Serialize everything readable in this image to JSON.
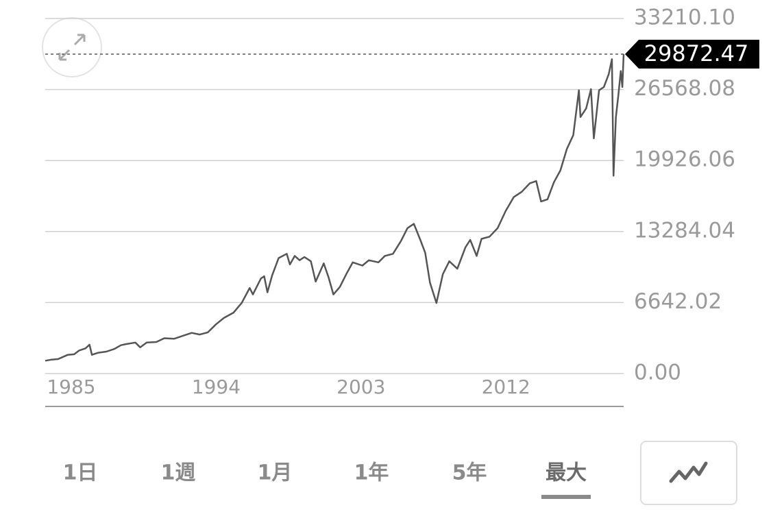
{
  "chart_data": {
    "type": "line",
    "x": [
      1984.9,
      1985.3,
      1985.7,
      1986.0,
      1986.3,
      1986.7,
      1987.0,
      1987.4,
      1987.65,
      1987.8,
      1988.2,
      1988.7,
      1989.2,
      1989.6,
      1989.9,
      1990.5,
      1990.8,
      1991.2,
      1991.8,
      1992.3,
      1992.9,
      1993.5,
      1994.0,
      1994.5,
      1995.0,
      1995.5,
      1996.0,
      1996.6,
      1997.1,
      1997.6,
      1997.8,
      1998.3,
      1998.5,
      1998.7,
      1999.0,
      1999.4,
      1999.9,
      2000.1,
      2000.4,
      2000.7,
      2001.0,
      2001.4,
      2001.7,
      2002.2,
      2002.5,
      2002.8,
      2003.2,
      2003.6,
      2004.0,
      2004.6,
      2005.0,
      2005.6,
      2006.0,
      2006.5,
      2007.0,
      2007.4,
      2007.8,
      2008.2,
      2008.5,
      2008.8,
      2009.2,
      2009.6,
      2010.0,
      2010.5,
      2011.0,
      2011.3,
      2011.7,
      2012.0,
      2012.5,
      2013.0,
      2013.5,
      2014.0,
      2014.5,
      2015.0,
      2015.4,
      2015.7,
      2016.1,
      2016.5,
      2016.9,
      2017.3,
      2017.7,
      2018.05,
      2018.15,
      2018.5,
      2018.8,
      2018.98,
      2019.3,
      2019.6,
      2019.9,
      2020.1,
      2020.2,
      2020.35,
      2020.5,
      2020.65,
      2020.75,
      2020.83
    ],
    "values": [
      1200,
      1300,
      1350,
      1550,
      1750,
      1800,
      2150,
      2350,
      2700,
      1750,
      1950,
      2050,
      2300,
      2650,
      2750,
      2900,
      2450,
      2900,
      2950,
      3300,
      3250,
      3550,
      3800,
      3650,
      3850,
      4600,
      5200,
      5700,
      6600,
      8000,
      7400,
      8900,
      9100,
      7600,
      9200,
      10800,
      11200,
      10200,
      11000,
      10600,
      10900,
      10500,
      8600,
      10300,
      9000,
      7400,
      8100,
      9300,
      10400,
      10100,
      10600,
      10400,
      11000,
      11200,
      12400,
      13600,
      14000,
      12500,
      11300,
      8500,
      6600,
      9300,
      10500,
      9800,
      11800,
      12500,
      11000,
      12600,
      12800,
      13600,
      15200,
      16500,
      17000,
      17800,
      18000,
      16100,
      16300,
      17900,
      19000,
      21000,
      22300,
      26500,
      24000,
      24800,
      26600,
      22000,
      26500,
      26800,
      28000,
      29400,
      18500,
      24000,
      26000,
      28300,
      26800,
      29872.47
    ],
    "color": "#555555",
    "xlim": [
      1984.9,
      2020.83
    ],
    "xticks": [
      1985,
      1994,
      2003,
      2012
    ],
    "ylim": [
      0,
      33210.1
    ],
    "yticks": [
      {
        "value": 0,
        "label": "0.00"
      },
      6642.02,
      13284.04,
      19926.06,
      26568.08,
      {
        "value": 33210.1,
        "label": "33210.10"
      }
    ],
    "grid": true,
    "current_value": 29872.47
  },
  "controls": {
    "periods": [
      "1日",
      "1週",
      "1月",
      "1年",
      "5年",
      "最大"
    ],
    "active_period": 5
  }
}
